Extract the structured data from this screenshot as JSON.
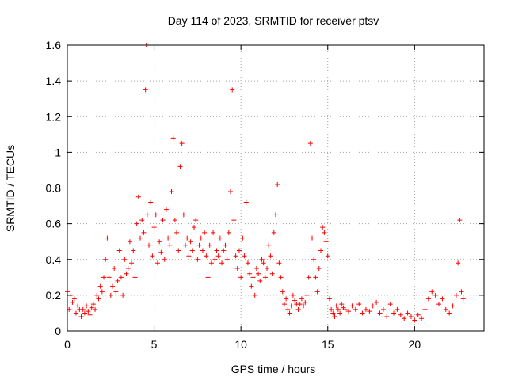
{
  "chart_data": {
    "type": "scatter",
    "title": "Day 114 of 2023, SRMTID for receiver ptsv",
    "xlabel": "GPS time / hours",
    "ylabel": "SRMTID / TECUs",
    "xlim": [
      0,
      24
    ],
    "ylim": [
      0,
      1.6
    ],
    "x_ticks": [
      0,
      5,
      10,
      15,
      20
    ],
    "x_tick_labels": [
      "0",
      "5",
      "10",
      "15",
      "20"
    ],
    "y_ticks": [
      0,
      0.2,
      0.4,
      0.6,
      0.8,
      1.0,
      1.2,
      1.4,
      1.6
    ],
    "y_tick_labels": [
      "0",
      "0.2",
      "0.4",
      "0.6",
      "0.8",
      "1",
      "1.2",
      "1.4",
      "1.6"
    ],
    "grid": true,
    "marker": "+",
    "series": [
      {
        "name": "SRMTID",
        "color": "#ff0000",
        "x": [
          0.0,
          0.1,
          0.2,
          0.3,
          0.4,
          0.5,
          0.6,
          0.7,
          0.8,
          0.9,
          1.0,
          1.1,
          1.2,
          1.3,
          1.4,
          1.5,
          1.6,
          1.7,
          1.8,
          1.9,
          2.0,
          2.1,
          2.2,
          2.3,
          2.4,
          2.5,
          2.6,
          2.7,
          2.8,
          2.9,
          3.0,
          3.1,
          3.2,
          3.3,
          3.4,
          3.5,
          3.6,
          3.7,
          3.8,
          3.9,
          4.0,
          4.1,
          4.2,
          4.3,
          4.4,
          4.5,
          4.55,
          4.6,
          4.7,
          4.8,
          4.9,
          5.0,
          5.1,
          5.2,
          5.3,
          5.4,
          5.5,
          5.6,
          5.7,
          5.8,
          5.9,
          6.0,
          6.1,
          6.2,
          6.3,
          6.4,
          6.5,
          6.6,
          6.7,
          6.8,
          6.9,
          7.0,
          7.1,
          7.2,
          7.3,
          7.4,
          7.5,
          7.6,
          7.7,
          7.8,
          7.9,
          8.0,
          8.1,
          8.2,
          8.3,
          8.4,
          8.5,
          8.6,
          8.7,
          8.8,
          8.9,
          9.0,
          9.1,
          9.2,
          9.3,
          9.4,
          9.5,
          9.6,
          9.7,
          9.8,
          9.9,
          10.0,
          10.1,
          10.2,
          10.3,
          10.4,
          10.5,
          10.6,
          10.7,
          10.8,
          10.9,
          11.0,
          11.1,
          11.2,
          11.3,
          11.4,
          11.5,
          11.6,
          11.7,
          11.8,
          11.9,
          12.0,
          12.1,
          12.2,
          12.3,
          12.4,
          12.5,
          12.6,
          12.7,
          12.8,
          12.9,
          13.0,
          13.1,
          13.2,
          13.3,
          13.4,
          13.5,
          13.6,
          13.7,
          13.8,
          13.9,
          14.0,
          14.1,
          14.2,
          14.3,
          14.4,
          14.5,
          14.6,
          14.7,
          14.8,
          14.9,
          15.0,
          15.1,
          15.2,
          15.3,
          15.4,
          15.5,
          15.6,
          15.7,
          15.8,
          15.9,
          16.0,
          16.2,
          16.4,
          16.6,
          16.8,
          17.0,
          17.2,
          17.4,
          17.6,
          17.8,
          18.0,
          18.2,
          18.4,
          18.6,
          18.8,
          19.0,
          19.2,
          19.4,
          19.6,
          19.8,
          20.0,
          20.2,
          20.4,
          20.6,
          20.8,
          21.0,
          21.2,
          21.4,
          21.6,
          21.8,
          22.0,
          22.2,
          22.4,
          22.5,
          22.6,
          22.7,
          22.8
        ],
        "y": [
          0.22,
          0.12,
          0.2,
          0.16,
          0.18,
          0.1,
          0.14,
          0.12,
          0.08,
          0.12,
          0.1,
          0.14,
          0.11,
          0.09,
          0.13,
          0.15,
          0.12,
          0.2,
          0.18,
          0.25,
          0.22,
          0.3,
          0.4,
          0.52,
          0.3,
          0.2,
          0.25,
          0.35,
          0.22,
          0.28,
          0.45,
          0.3,
          0.2,
          0.4,
          0.32,
          0.35,
          0.5,
          0.38,
          0.45,
          0.3,
          0.6,
          0.75,
          0.52,
          0.62,
          0.55,
          1.35,
          1.6,
          0.65,
          0.48,
          0.72,
          0.42,
          0.58,
          0.65,
          0.38,
          0.5,
          0.44,
          0.62,
          0.4,
          0.68,
          0.52,
          0.48,
          0.78,
          1.08,
          0.62,
          0.55,
          0.45,
          0.92,
          1.05,
          0.65,
          0.48,
          0.52,
          0.42,
          0.5,
          0.45,
          0.58,
          0.62,
          0.4,
          0.48,
          0.52,
          0.45,
          0.55,
          0.42,
          0.3,
          0.48,
          0.38,
          0.55,
          0.4,
          0.45,
          0.42,
          0.52,
          0.38,
          0.45,
          0.48,
          0.4,
          0.55,
          0.78,
          1.35,
          0.62,
          0.42,
          0.35,
          0.45,
          0.3,
          0.52,
          0.42,
          0.72,
          0.38,
          0.32,
          0.25,
          0.3,
          0.2,
          0.35,
          0.32,
          0.28,
          0.4,
          0.38,
          0.3,
          0.35,
          0.48,
          0.42,
          0.32,
          0.55,
          0.65,
          0.82,
          0.38,
          0.3,
          0.22,
          0.15,
          0.18,
          0.12,
          0.1,
          0.14,
          0.2,
          0.17,
          0.15,
          0.12,
          0.15,
          0.18,
          0.14,
          0.16,
          0.2,
          0.3,
          1.05,
          0.52,
          0.4,
          0.3,
          0.22,
          0.35,
          0.45,
          0.58,
          0.55,
          0.5,
          0.42,
          0.18,
          0.12,
          0.1,
          0.08,
          0.14,
          0.12,
          0.1,
          0.15,
          0.13,
          0.12,
          0.11,
          0.14,
          0.12,
          0.15,
          0.1,
          0.12,
          0.11,
          0.14,
          0.16,
          0.1,
          0.12,
          0.08,
          0.15,
          0.1,
          0.12,
          0.09,
          0.07,
          0.1,
          0.08,
          0.06,
          0.09,
          0.07,
          0.12,
          0.18,
          0.22,
          0.2,
          0.15,
          0.18,
          0.12,
          0.1,
          0.14,
          0.2,
          0.38,
          0.62,
          0.22,
          0.18
        ]
      }
    ]
  }
}
